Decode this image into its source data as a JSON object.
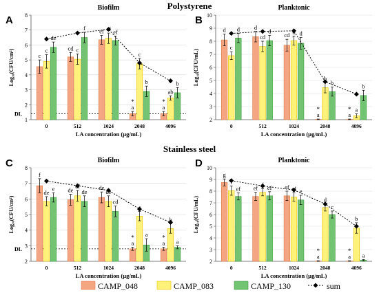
{
  "figure": {
    "section_titles": [
      "Polystyrene",
      "Stainless steel"
    ],
    "legend": [
      {
        "label": "CAMP_048",
        "color": "#F4A582",
        "edge": "#E07B4A"
      },
      {
        "label": "CAMP_083",
        "color": "#FFF27A",
        "edge": "#E6C200"
      },
      {
        "label": "CAMP_130",
        "color": "#72C472",
        "edge": "#3C9A3C"
      },
      {
        "label": "sum",
        "color": "#000000"
      }
    ],
    "colors": {
      "camp048": "#F4A582",
      "camp083": "#FFF27A",
      "camp130": "#72C472",
      "sum": "#000000",
      "bg": "#ffffff"
    }
  },
  "chart_data": [
    {
      "panel_letter": "A",
      "type": "bar",
      "title": "Biofilm",
      "xlabel": "LA concentration (µg/mL)",
      "ylabel": "Log₁₀(CFU/cm²)",
      "categories": [
        "0",
        "512",
        "1024",
        "2048",
        "4096"
      ],
      "ylim": [
        1,
        8
      ],
      "yticks": [
        1,
        2,
        3,
        4,
        5,
        6,
        7,
        8
      ],
      "dl": {
        "label": "DL",
        "value": 1.4
      },
      "series": [
        {
          "name": "CAMP_048",
          "values": [
            4.55,
            5.2,
            6.35,
            1.4,
            1.4
          ],
          "err": [
            0.45,
            0.3,
            0.3,
            0.15,
            0.15
          ],
          "letters": [
            "c",
            "cd",
            "ef",
            "a",
            "a"
          ],
          "stars": [
            false,
            false,
            false,
            true,
            true
          ]
        },
        {
          "name": "CAMP_083",
          "values": [
            4.9,
            5.05,
            6.45,
            4.75,
            2.45
          ],
          "err": [
            0.45,
            0.35,
            0.35,
            0.35,
            0.15
          ],
          "letters": [
            "c",
            "c",
            "ef",
            "c",
            "ab"
          ],
          "stars": [
            false,
            false,
            false,
            false,
            false
          ]
        },
        {
          "name": "CAMP_130",
          "values": [
            5.85,
            6.5,
            6.3,
            2.9,
            2.8
          ],
          "err": [
            0.35,
            0.35,
            0.3,
            0.35,
            0.35
          ],
          "letters": [
            "de",
            "f",
            "ef",
            "b",
            "b"
          ],
          "stars": [
            false,
            false,
            false,
            false,
            false
          ]
        }
      ],
      "sum": [
        6.4,
        6.8,
        7.05,
        4.8,
        3.6
      ]
    },
    {
      "panel_letter": "B",
      "type": "bar",
      "title": "Planktonic",
      "xlabel": "LA concentration (µg/mL)",
      "ylabel": "Log₁₀(CFU/mL)",
      "categories": [
        "0",
        "512",
        "1024",
        "2048",
        "4096"
      ],
      "ylim": [
        2,
        10
      ],
      "yticks": [
        2,
        3,
        4,
        5,
        6,
        7,
        8,
        9,
        10
      ],
      "series": [
        {
          "name": "CAMP_048",
          "values": [
            8.1,
            8.35,
            7.7,
            2.0,
            2.0
          ],
          "err": [
            0.45,
            0.4,
            0.45,
            0.05,
            0.05
          ],
          "letters": [
            "d",
            "d",
            "cd",
            "a",
            "a"
          ],
          "stars": [
            false,
            false,
            false,
            true,
            true
          ]
        },
        {
          "name": "CAMP_083",
          "values": [
            6.9,
            7.6,
            8.05,
            4.45,
            2.3
          ],
          "err": [
            0.3,
            0.4,
            0.35,
            0.4,
            0.15
          ],
          "letters": [
            "c",
            "cd",
            "d",
            "b",
            "a"
          ],
          "stars": [
            false,
            false,
            false,
            false,
            false
          ]
        },
        {
          "name": "CAMP_130",
          "values": [
            8.25,
            8.05,
            7.85,
            4.15,
            3.85
          ],
          "err": [
            0.35,
            0.4,
            0.45,
            0.35,
            0.4
          ],
          "letters": [
            "d",
            "d",
            "d",
            "b",
            "b"
          ],
          "stars": [
            false,
            false,
            false,
            false,
            false
          ]
        }
      ],
      "sum": [
        8.6,
        8.75,
        8.8,
        4.9,
        3.95
      ]
    },
    {
      "panel_letter": "C",
      "type": "bar",
      "title": "Biofilm",
      "xlabel": "LA concentration (µg/mL)",
      "ylabel": "Log₁₀(CFU/cm²)",
      "categories": [
        "0",
        "512",
        "1024",
        "2048",
        "4096"
      ],
      "ylim": [
        2,
        8
      ],
      "yticks": [
        2,
        3,
        4,
        5,
        6,
        7,
        8
      ],
      "dl": {
        "label": "DL",
        "value": 2.8
      },
      "series": [
        {
          "name": "CAMP_048",
          "values": [
            6.85,
            5.95,
            6.1,
            2.8,
            2.8
          ],
          "err": [
            0.45,
            0.35,
            0.35,
            0.1,
            0.1
          ],
          "letters": [
            "f",
            "de",
            "de",
            "a",
            "a"
          ],
          "stars": [
            false,
            false,
            false,
            true,
            true
          ]
        },
        {
          "name": "CAMP_083",
          "values": [
            5.85,
            6.2,
            5.85,
            4.9,
            4.1
          ],
          "err": [
            0.3,
            0.35,
            0.35,
            0.3,
            0.3
          ],
          "letters": [
            "de",
            "ef",
            "de",
            "c",
            "b"
          ],
          "stars": [
            false,
            false,
            false,
            false,
            false
          ]
        },
        {
          "name": "CAMP_130",
          "values": [
            6.1,
            5.85,
            5.2,
            3.05,
            2.9
          ],
          "err": [
            0.3,
            0.35,
            0.35,
            0.4,
            0.1
          ],
          "letters": [
            "e",
            "de",
            "cd",
            "a",
            "a"
          ],
          "stars": [
            false,
            false,
            false,
            false,
            false
          ]
        }
      ],
      "sum": [
        7.15,
        6.85,
        6.55,
        5.35,
        4.5
      ]
    },
    {
      "panel_letter": "D",
      "type": "bar",
      "title": "Planktonic",
      "xlabel": "LA concentration (µg/mL)",
      "ylabel": "Log₁₀(CFU/mL)",
      "categories": [
        "0",
        "512",
        "1024",
        "2048",
        "4096"
      ],
      "ylim": [
        2,
        10
      ],
      "yticks": [
        2,
        3,
        4,
        5,
        6,
        7,
        8,
        9,
        10
      ],
      "series": [
        {
          "name": "CAMP_048",
          "values": [
            8.75,
            7.55,
            7.6,
            2.0,
            2.0
          ],
          "err": [
            0.3,
            0.35,
            0.4,
            0.05,
            0.05
          ],
          "letters": [
            "g",
            "ef",
            "ef",
            "a",
            "a"
          ],
          "stars": [
            false,
            false,
            false,
            true,
            true
          ]
        },
        {
          "name": "CAMP_083",
          "values": [
            8.05,
            7.9,
            7.5,
            6.6,
            4.85
          ],
          "err": [
            0.4,
            0.3,
            0.35,
            0.3,
            0.45
          ],
          "letters": [
            "f",
            "f",
            "ef",
            "d",
            "b"
          ],
          "stars": [
            false,
            false,
            false,
            false,
            false
          ]
        },
        {
          "name": "CAMP_130",
          "values": [
            7.55,
            7.6,
            7.25,
            6.0,
            2.1
          ],
          "err": [
            0.3,
            0.35,
            0.4,
            0.3,
            0.05
          ],
          "letters": [
            "ef",
            "ef",
            "e",
            "c",
            "a"
          ],
          "stars": [
            false,
            false,
            false,
            false,
            false
          ]
        }
      ],
      "sum": [
        8.9,
        8.45,
        8.1,
        6.9,
        5.0
      ]
    }
  ]
}
